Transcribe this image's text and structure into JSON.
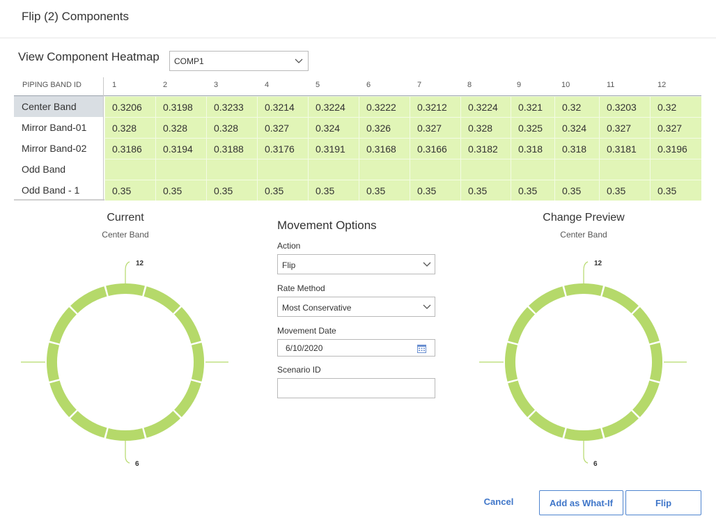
{
  "dialog": {
    "title": "Flip (2) Components"
  },
  "heatmap": {
    "label": "View Component Heatmap",
    "component_select": "COMP1",
    "id_header": "PIPING BAND ID",
    "columns": [
      "1",
      "2",
      "3",
      "4",
      "5",
      "6",
      "7",
      "8",
      "9",
      "10",
      "11",
      "12"
    ],
    "rows": [
      {
        "label": "Center Band",
        "selected": true,
        "values": [
          "0.3206",
          "0.3198",
          "0.3233",
          "0.3214",
          "0.3224",
          "0.3222",
          "0.3212",
          "0.3224",
          "0.321",
          "0.32",
          "0.3203",
          "0.32"
        ]
      },
      {
        "label": "Mirror Band-01",
        "selected": false,
        "values": [
          "0.328",
          "0.328",
          "0.328",
          "0.327",
          "0.324",
          "0.326",
          "0.327",
          "0.328",
          "0.325",
          "0.324",
          "0.327",
          "0.327"
        ]
      },
      {
        "label": "Mirror Band-02",
        "selected": false,
        "values": [
          "0.3186",
          "0.3194",
          "0.3188",
          "0.3176",
          "0.3191",
          "0.3168",
          "0.3166",
          "0.3182",
          "0.318",
          "0.318",
          "0.3181",
          "0.3196"
        ]
      },
      {
        "label": "Odd Band",
        "selected": false,
        "values": [
          "",
          "",
          "",
          "",
          "",
          "",
          "",
          "",
          "",
          "",
          "",
          ""
        ]
      },
      {
        "label": "Odd Band - 1",
        "selected": false,
        "values": [
          "0.35",
          "0.35",
          "0.35",
          "0.35",
          "0.35",
          "0.35",
          "0.35",
          "0.35",
          "0.35",
          "0.35",
          "0.35",
          "0.35"
        ]
      }
    ],
    "cell_color": "#e1f5b7"
  },
  "current": {
    "title": "Current",
    "subtitle": "Center Band",
    "top_label": "12",
    "bottom_label": "6",
    "segments": 12,
    "ring_color": "#b5d96a"
  },
  "preview": {
    "title": "Change Preview",
    "subtitle": "Center Band",
    "top_label": "12",
    "bottom_label": "6",
    "segments": 12,
    "ring_color": "#b5d96a"
  },
  "movement": {
    "title": "Movement Options",
    "action_label": "Action",
    "action_value": "Flip",
    "rate_label": "Rate Method",
    "rate_value": "Most Conservative",
    "date_label": "Movement Date",
    "date_value": "6/10/2020",
    "scenario_label": "Scenario ID",
    "scenario_value": ""
  },
  "buttons": {
    "cancel": "Cancel",
    "what_if": "Add as What-If",
    "flip": "Flip"
  },
  "colors": {
    "accent": "#3f76c9",
    "ring": "#b5d96a",
    "selected_row": "#d9dee3"
  }
}
